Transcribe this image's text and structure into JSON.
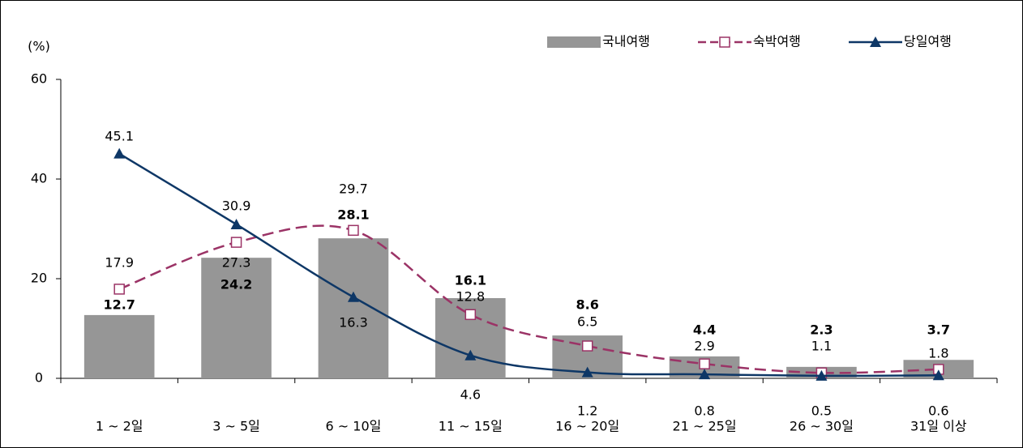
{
  "chart_data": {
    "type": "bar-line",
    "y_axis_label": "(%)",
    "categories": [
      "1 ~ 2일",
      "3 ~ 5일",
      "6 ~ 10일",
      "11 ~ 15일",
      "16 ~ 20일",
      "21 ~ 25일",
      "26 ~ 30일",
      "31일 이상"
    ],
    "series": [
      {
        "name": "국내여행",
        "type": "bar",
        "color": "#969696",
        "values": [
          12.7,
          24.2,
          28.1,
          16.1,
          8.6,
          4.4,
          2.3,
          3.7
        ]
      },
      {
        "name": "숙박여행",
        "type": "line",
        "color": "#9b3366",
        "dashed": true,
        "marker": "square",
        "values": [
          17.9,
          27.3,
          29.7,
          12.8,
          6.5,
          2.9,
          1.1,
          1.8
        ]
      },
      {
        "name": "당일여행",
        "type": "line",
        "color": "#0e3766",
        "dashed": false,
        "marker": "triangle",
        "values": [
          45.1,
          30.9,
          16.3,
          4.6,
          1.2,
          0.8,
          0.5,
          0.6
        ]
      }
    ],
    "ylim": [
      0,
      60
    ],
    "yticks": [
      0,
      20,
      40,
      60
    ],
    "smooth": true,
    "legend": "top-right"
  }
}
